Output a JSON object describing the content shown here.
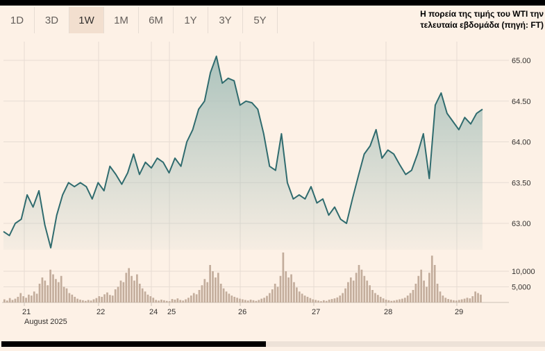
{
  "range_tabs": [
    {
      "label": "1D",
      "active": false
    },
    {
      "label": "3D",
      "active": false
    },
    {
      "label": "1W",
      "active": true
    },
    {
      "label": "1M",
      "active": false
    },
    {
      "label": "6M",
      "active": false
    },
    {
      "label": "1Y",
      "active": false
    },
    {
      "label": "3Y",
      "active": false
    },
    {
      "label": "5Y",
      "active": false
    }
  ],
  "caption": {
    "line1": "Η πορεία της τιμής του WTI την",
    "line2": "τελευταία εβδομάδα (πηγή: FT)"
  },
  "colors": {
    "background": "#fdf1e6",
    "price_line": "#2f6b6e",
    "area_top": "#a9c1bb",
    "volume_bar": "#c3ad9c",
    "grid": "#e6dcd3"
  },
  "chart_data": [
    {
      "type": "area",
      "title": "",
      "y_axis_side": "right",
      "ylim": [
        62.7,
        65.15
      ],
      "y_ticks": [
        "65.00",
        "64.50",
        "64.00",
        "63.50",
        "63.00"
      ],
      "x_ticks": [
        "21",
        "22",
        "24",
        "25",
        "26",
        "27",
        "28",
        "29"
      ],
      "x_sublabel": "August 2025",
      "grid": true,
      "series": [
        {
          "name": "",
          "values": [
            62.9,
            62.85,
            63.0,
            63.05,
            63.35,
            63.2,
            63.4,
            62.98,
            62.7,
            63.1,
            63.35,
            63.5,
            63.45,
            63.5,
            63.45,
            63.3,
            63.5,
            63.4,
            63.7,
            63.6,
            63.48,
            63.62,
            63.85,
            63.6,
            63.75,
            63.68,
            63.8,
            63.75,
            63.62,
            63.8,
            63.7,
            64.0,
            64.15,
            64.4,
            64.5,
            64.85,
            65.05,
            64.72,
            64.78,
            64.75,
            64.45,
            64.5,
            64.48,
            64.4,
            64.1,
            63.7,
            63.65,
            64.1,
            63.5,
            63.3,
            63.35,
            63.3,
            63.45,
            63.25,
            63.3,
            63.1,
            63.2,
            63.05,
            63.0,
            63.3,
            63.58,
            63.85,
            63.95,
            64.15,
            63.8,
            63.9,
            63.85,
            63.72,
            63.6,
            63.65,
            63.85,
            64.1,
            63.55,
            64.45,
            64.6,
            64.35,
            64.25,
            64.15,
            64.3,
            64.22,
            64.35,
            64.4
          ]
        }
      ]
    },
    {
      "type": "bar",
      "title": "",
      "y_axis_side": "right",
      "ylim": [
        0,
        16000
      ],
      "y_ticks": [
        "10,000",
        "5,000"
      ],
      "grid": true,
      "series": [
        {
          "name": "",
          "values": [
            1000,
            600,
            1400,
            800,
            1200,
            1800,
            3000,
            2000,
            1500,
            2500,
            2200,
            3500,
            2800,
            6000,
            8000,
            7000,
            5500,
            10500,
            9000,
            7500,
            6500,
            8500,
            5000,
            4500,
            3000,
            2500,
            1800,
            1200,
            900,
            700,
            500,
            800,
            600,
            1000,
            1400,
            2000,
            1800,
            2600,
            3200,
            2400,
            2200,
            4200,
            5000,
            7000,
            6500,
            9500,
            11000,
            8500,
            7000,
            9000,
            6000,
            4500,
            3500,
            2500,
            2000,
            1500,
            800,
            600,
            900,
            700,
            500,
            400,
            1100,
            900,
            1300,
            800,
            600,
            1000,
            1500,
            2200,
            3000,
            2600,
            4000,
            5500,
            7500,
            6500,
            12000,
            10000,
            8000,
            9500,
            6000,
            4500,
            3500,
            2800,
            2200,
            1800,
            1500,
            1200,
            1000,
            800,
            600,
            900,
            700,
            500,
            800,
            1200,
            1500,
            2100,
            3000,
            4200,
            6000,
            5000,
            8500,
            16000,
            10000,
            8000,
            9000,
            6500,
            4800,
            3500,
            2800,
            2200,
            1800,
            1400,
            1000,
            800,
            600,
            400,
            700,
            500,
            900,
            1100,
            1300,
            1600,
            2200,
            3000,
            4500,
            6500,
            8000,
            7000,
            9500,
            12000,
            10500,
            8500,
            7000,
            5500,
            4000,
            3000,
            2400,
            1800,
            1300,
            900,
            700,
            500,
            600,
            800,
            1000,
            1200,
            1500,
            2200,
            3000,
            4000,
            6000,
            8500,
            10500,
            7000,
            5000,
            9500,
            15000,
            12000,
            6000,
            3500,
            2200,
            1500,
            1100,
            900,
            700,
            600,
            800,
            1000,
            1200,
            1500,
            1300,
            2000,
            3500,
            3000,
            2500
          ]
        }
      ]
    }
  ]
}
